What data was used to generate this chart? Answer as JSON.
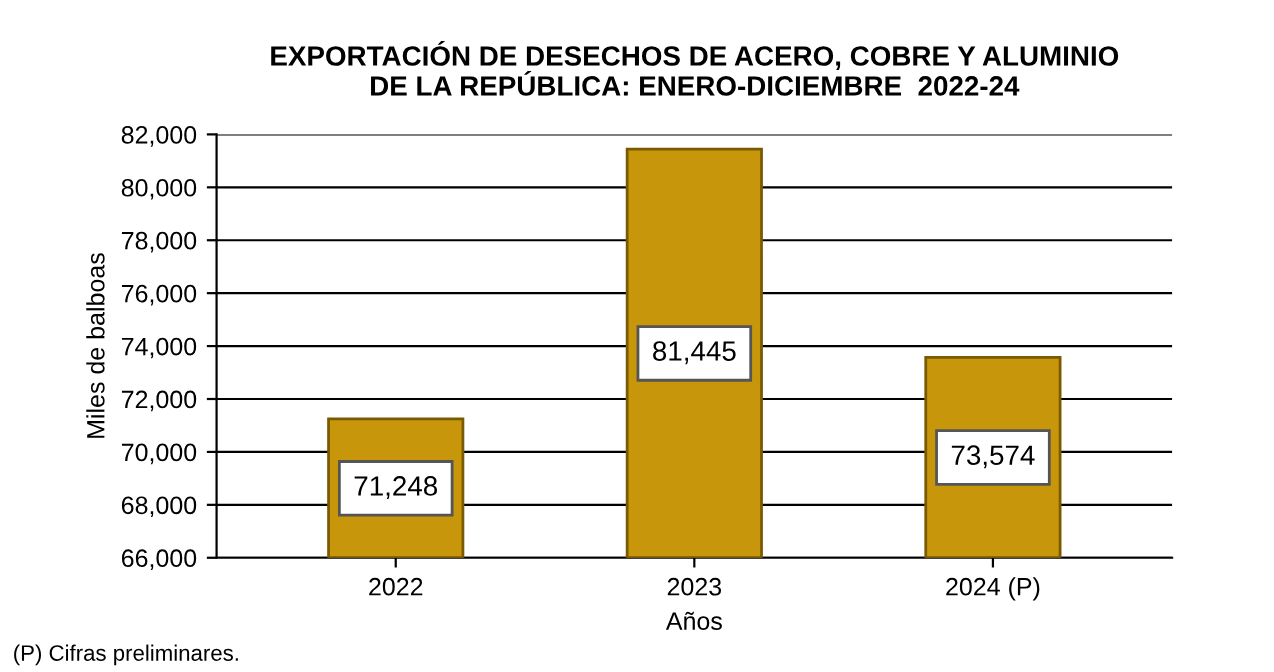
{
  "chart_data": {
    "type": "bar",
    "title": "EXPORTACIÓN DE DESECHOS DE ACERO, COBRE Y ALUMINIO\nDE LA REPÚBLICA: ENERO-DICIEMBRE  2022-24",
    "categories": [
      "2022",
      "2023",
      "2024 (P)"
    ],
    "values": [
      71248,
      81445,
      73574
    ],
    "value_labels": [
      "71,248",
      "81,445",
      "73,574"
    ],
    "color": "#c8960a",
    "xlabel": "Años",
    "ylabel": "Miles de balboas",
    "ylim": [
      66000,
      82000
    ],
    "yticks": [
      {
        "value": 66000,
        "label": "66,000"
      },
      {
        "value": 68000,
        "label": "68,000"
      },
      {
        "value": 70000,
        "label": "70,000"
      },
      {
        "value": 72000,
        "label": "72,000"
      },
      {
        "value": 74000,
        "label": "74,000"
      },
      {
        "value": 76000,
        "label": "76,000"
      },
      {
        "value": 78000,
        "label": "78,000"
      },
      {
        "value": 80000,
        "label": "80,000"
      },
      {
        "value": 82000,
        "label": "82,000"
      }
    ],
    "grid": "y",
    "annotations": [
      "(P) Cifras preliminares."
    ]
  }
}
